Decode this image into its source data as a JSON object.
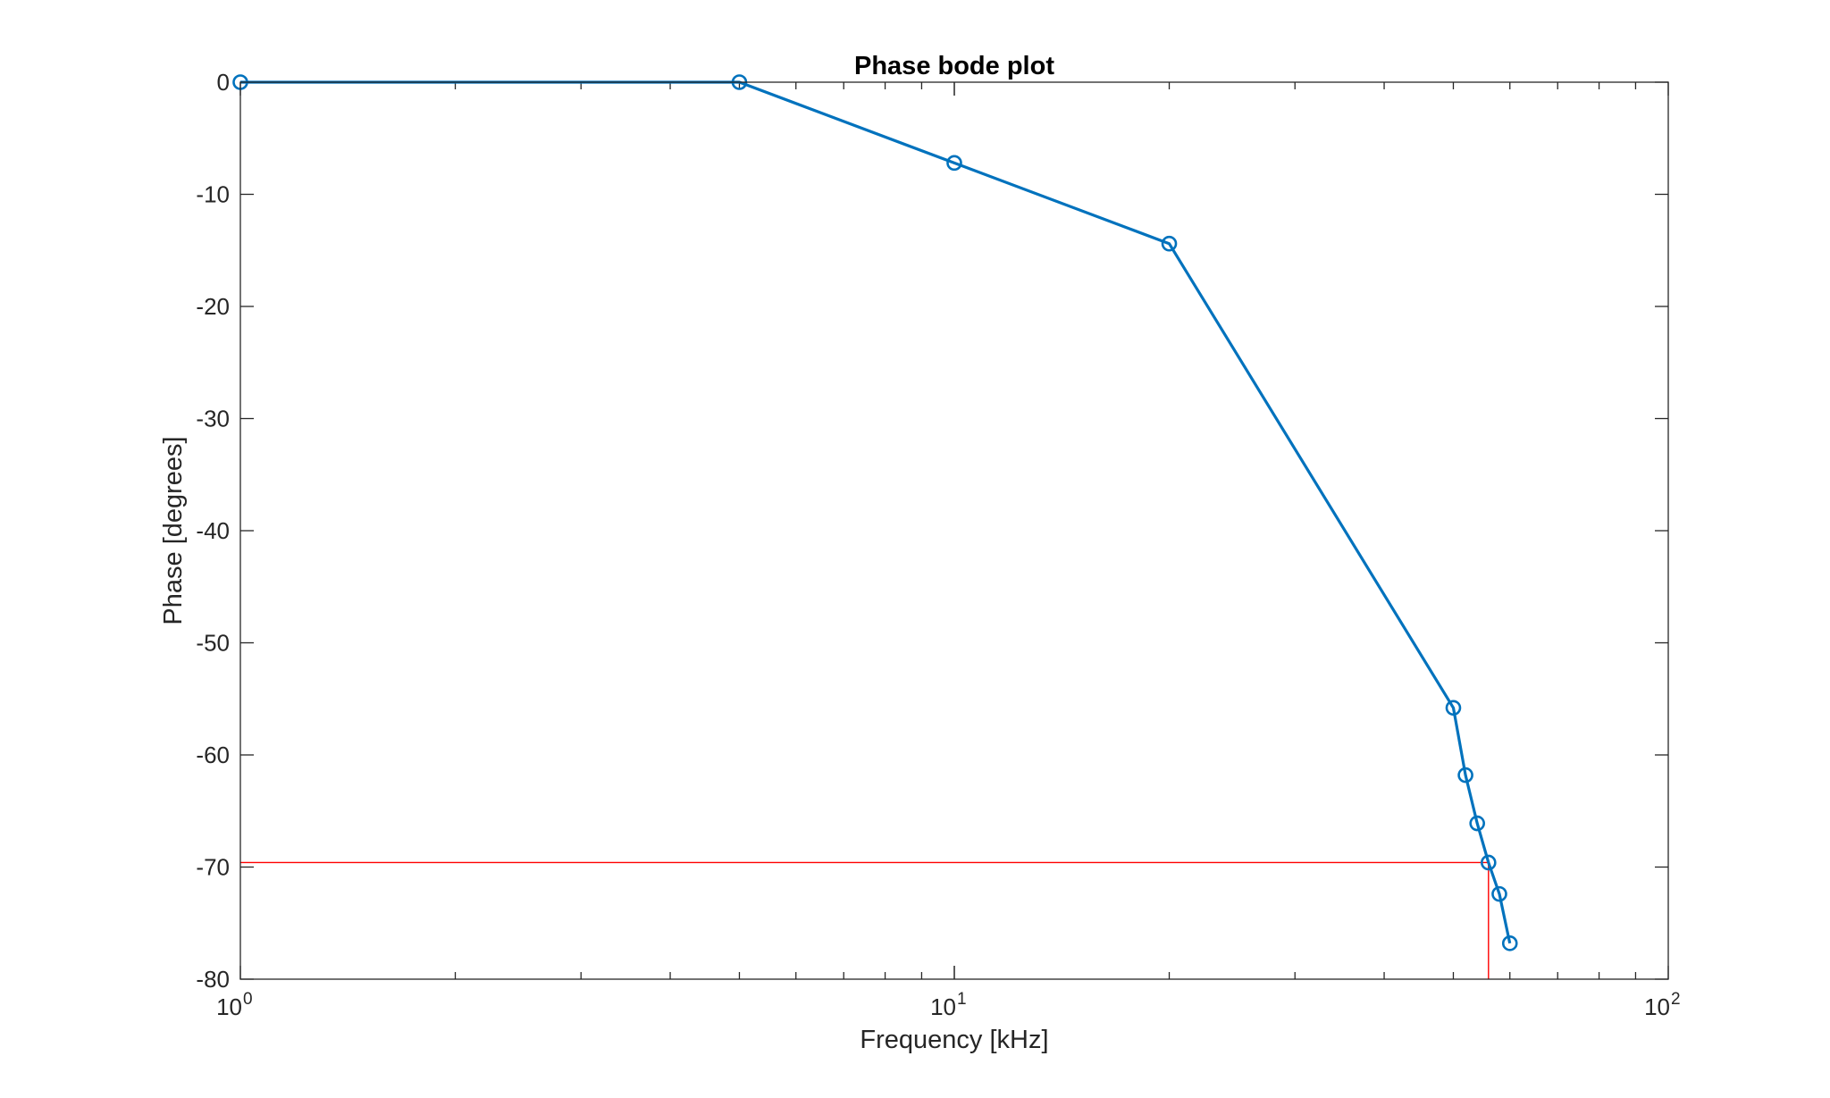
{
  "chart_data": {
    "type": "line",
    "title": "Phase bode plot",
    "xlabel": "Frequency [kHz]",
    "ylabel": "Phase [degrees]",
    "xscale": "log",
    "xlim": [
      1,
      100
    ],
    "ylim": [
      -80,
      0
    ],
    "grid": false,
    "legend": "none",
    "x_ticks": [
      {
        "value": 1,
        "base": "10",
        "exp": "0"
      },
      {
        "value": 10,
        "base": "10",
        "exp": "1"
      },
      {
        "value": 100,
        "base": "10",
        "exp": "2"
      }
    ],
    "y_ticks": [
      {
        "value": 0,
        "label": "0"
      },
      {
        "value": -10,
        "label": "-10"
      },
      {
        "value": -20,
        "label": "-20"
      },
      {
        "value": -30,
        "label": "-30"
      },
      {
        "value": -40,
        "label": "-40"
      },
      {
        "value": -50,
        "label": "-50"
      },
      {
        "value": -60,
        "label": "-60"
      },
      {
        "value": -70,
        "label": "-70"
      },
      {
        "value": -80,
        "label": "-80"
      }
    ],
    "series": [
      {
        "color": "#0072BD",
        "marker": "circle",
        "points": [
          {
            "x": 1,
            "y": 0
          },
          {
            "x": 5,
            "y": 0
          },
          {
            "x": 10,
            "y": -7.2
          },
          {
            "x": 20,
            "y": -14.4
          },
          {
            "x": 50,
            "y": -55.8
          },
          {
            "x": 52,
            "y": -61.8
          },
          {
            "x": 54,
            "y": -66.1
          },
          {
            "x": 56,
            "y": -69.6
          },
          {
            "x": 58,
            "y": -72.4
          },
          {
            "x": 60,
            "y": -76.8
          }
        ]
      }
    ],
    "reference_lines": {
      "color": "#FF0000",
      "x": 56,
      "y": -69.6
    },
    "axis_color": "#262626"
  }
}
